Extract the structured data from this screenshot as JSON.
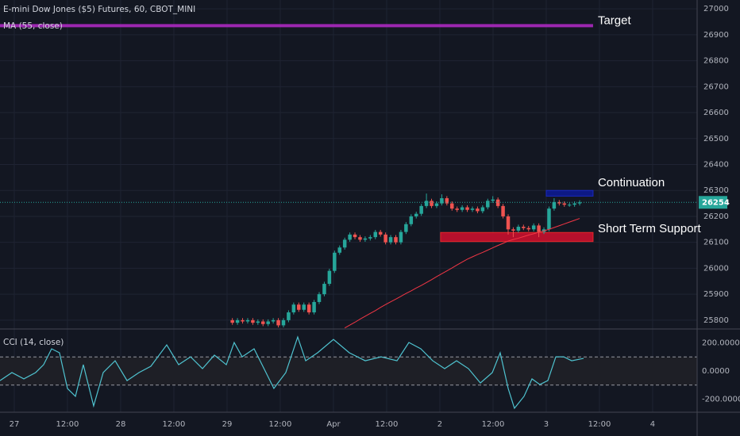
{
  "chart_data": [
    {
      "type": "candlestick",
      "title": "E-mini Dow Jones ($5) Futures, 60, CBOT_MINI",
      "up_color": "#26a69a",
      "down_color": "#ef5350",
      "x": [
        2.05,
        2.098,
        2.146,
        2.194,
        2.242,
        2.29,
        2.338,
        2.386,
        2.434,
        2.482,
        2.53,
        2.578,
        2.626,
        2.674,
        2.722,
        2.77,
        2.818,
        2.866,
        2.914,
        2.962,
        3.01,
        3.058,
        3.106,
        3.154,
        3.202,
        3.25,
        3.298,
        3.346,
        3.394,
        3.442,
        3.49,
        3.538,
        3.586,
        3.634,
        3.682,
        3.73,
        3.778,
        3.826,
        3.874,
        3.922,
        3.97,
        4.018,
        4.066,
        4.114,
        4.162,
        4.21,
        4.258,
        4.306,
        4.354,
        4.402,
        4.45,
        4.498,
        4.546,
        4.594,
        4.642,
        4.69,
        4.738,
        4.786,
        4.834,
        4.882,
        4.93,
        4.978,
        5.026,
        5.074,
        5.122,
        5.17,
        5.218,
        5.266,
        5.314
      ],
      "open": [
        25800,
        25790,
        25800,
        25795,
        25800,
        25790,
        25795,
        25785,
        25795,
        25800,
        25780,
        25800,
        25830,
        25860,
        25840,
        25860,
        25830,
        25870,
        25900,
        25940,
        25990,
        26060,
        26080,
        26110,
        26130,
        26120,
        26110,
        26115,
        26120,
        26140,
        26130,
        26100,
        26120,
        26100,
        26140,
        26170,
        26200,
        26210,
        26240,
        26260,
        26240,
        26250,
        26270,
        26250,
        26230,
        26225,
        26235,
        26225,
        26230,
        26220,
        26235,
        26260,
        26265,
        26240,
        26200,
        26150,
        26145,
        26160,
        26155,
        26150,
        26165,
        26140,
        26150,
        26230,
        26255,
        26250,
        26245,
        26245,
        26250
      ],
      "high": [
        25808,
        25808,
        25808,
        25808,
        25808,
        25803,
        25803,
        25803,
        25808,
        25808,
        25808,
        25838,
        25868,
        25868,
        25868,
        25868,
        25878,
        25908,
        25948,
        25998,
        26068,
        26088,
        26118,
        26138,
        26138,
        26128,
        26123,
        26128,
        26148,
        26148,
        26138,
        26128,
        26128,
        26148,
        26178,
        26208,
        26218,
        26248,
        26288,
        26268,
        26258,
        26285,
        26278,
        26258,
        26238,
        26243,
        26243,
        26238,
        26238,
        26243,
        26268,
        26278,
        26273,
        26248,
        26208,
        26158,
        26168,
        26168,
        26163,
        26173,
        26173,
        26158,
        26238,
        26270,
        26263,
        26258,
        26253,
        26258,
        26262
      ],
      "low": [
        25782,
        25782,
        25787,
        25787,
        25782,
        25782,
        25777,
        25777,
        25787,
        25772,
        25772,
        25792,
        25822,
        25832,
        25832,
        25822,
        25822,
        25862,
        25892,
        25932,
        25982,
        26052,
        26072,
        26102,
        26112,
        26102,
        26102,
        26107,
        26112,
        26122,
        26092,
        26092,
        26092,
        26092,
        26132,
        26162,
        26192,
        26202,
        26232,
        26232,
        26232,
        26242,
        26242,
        26222,
        26217,
        26217,
        26217,
        26217,
        26212,
        26212,
        26227,
        26252,
        26232,
        26192,
        26130,
        26120,
        26137,
        26147,
        26142,
        26142,
        26120,
        26132,
        26142,
        26222,
        26242,
        26237,
        26237,
        26237,
        26242
      ],
      "close": [
        25790,
        25800,
        25795,
        25800,
        25790,
        25795,
        25785,
        25795,
        25800,
        25780,
        25800,
        25830,
        25860,
        25840,
        25860,
        25830,
        25870,
        25900,
        25940,
        25990,
        26060,
        26080,
        26110,
        26130,
        26120,
        26110,
        26115,
        26120,
        26140,
        26130,
        26100,
        26120,
        26100,
        26140,
        26170,
        26200,
        26210,
        26240,
        26260,
        26240,
        26250,
        26270,
        26250,
        26230,
        26225,
        26235,
        26225,
        26230,
        26220,
        26235,
        26260,
        26265,
        26240,
        26200,
        26150,
        26145,
        26160,
        26155,
        26150,
        26165,
        26140,
        26150,
        26230,
        26255,
        26250,
        26245,
        26245,
        26250,
        26254
      ],
      "ma": {
        "name": "MA (55, close)",
        "color": "#f23645",
        "values": [
          null,
          null,
          null,
          null,
          null,
          null,
          null,
          null,
          null,
          null,
          null,
          null,
          null,
          null,
          null,
          null,
          null,
          null,
          null,
          null,
          null,
          null,
          25770,
          25781,
          25792,
          25804,
          25815,
          25826,
          25837,
          25849,
          25860,
          25871,
          25881,
          25892,
          25903,
          25913,
          25924,
          25934,
          25945,
          25956,
          25968,
          25979,
          25990,
          26001,
          26013,
          26024,
          26035,
          26044,
          26053,
          26061,
          26070,
          26079,
          26088,
          26096,
          26105,
          26111,
          26116,
          26122,
          26128,
          26133,
          26139,
          26144,
          26150,
          26157,
          26164,
          26171,
          26178,
          26185,
          26192
        ]
      },
      "annotations": [
        {
          "label": "Target",
          "level": 26935,
          "x": [
            -0.134,
            5.44
          ],
          "color": "#9c27b0"
        },
        {
          "label": "Continuation",
          "range": [
            26278,
            26300
          ],
          "x": [
            5.0,
            5.44
          ],
          "color": "#0d1a8f"
        },
        {
          "label": "Short Term Support",
          "range": [
            26103,
            26138
          ],
          "x": [
            4.007,
            5.44
          ],
          "color": "#c8102e"
        }
      ],
      "xlim": [
        -0.134,
        6.418
      ],
      "xticks": [
        {
          "value": 0,
          "label": "27"
        },
        {
          "value": 0.5,
          "label": "12:00"
        },
        {
          "value": 1,
          "label": "28"
        },
        {
          "value": 1.5,
          "label": "12:00"
        },
        {
          "value": 2,
          "label": "29"
        },
        {
          "value": 2.5,
          "label": "12:00"
        },
        {
          "value": 3,
          "label": "Apr"
        },
        {
          "value": 3.5,
          "label": "12:00"
        },
        {
          "value": 4,
          "label": "2"
        },
        {
          "value": 4.5,
          "label": "12:00"
        },
        {
          "value": 5,
          "label": "3"
        },
        {
          "value": 5.5,
          "label": "12:00"
        },
        {
          "value": 6,
          "label": "4"
        }
      ],
      "ylim": [
        25766,
        27034
      ],
      "yticks": [
        25800,
        25900,
        26000,
        26100,
        26200,
        26300,
        26400,
        26500,
        26600,
        26700,
        26800,
        26900,
        27000
      ],
      "grid": true
    },
    {
      "type": "line",
      "title": "CCI (14, close)",
      "color": "#4fc3d0",
      "x": [
        -0.134,
        -0.022,
        0.09,
        0.201,
        0.276,
        0.351,
        0.425,
        0.5,
        0.575,
        0.649,
        0.746,
        0.836,
        0.948,
        1.06,
        1.172,
        1.284,
        1.433,
        1.545,
        1.657,
        1.769,
        1.881,
        1.993,
        2.067,
        2.142,
        2.254,
        2.366,
        2.44,
        2.552,
        2.664,
        2.739,
        2.851,
        3.0,
        3.149,
        3.299,
        3.448,
        3.597,
        3.709,
        3.821,
        3.933,
        4.045,
        4.157,
        4.269,
        4.381,
        4.493,
        4.567,
        4.642,
        4.701,
        4.791,
        4.866,
        4.94,
        5.015,
        5.09,
        5.164,
        5.239,
        5.351
      ],
      "values": [
        -68,
        -11,
        -56,
        -11,
        45,
        158,
        130,
        -124,
        -180,
        45,
        -248,
        -11,
        73,
        -68,
        -11,
        34,
        186,
        45,
        101,
        17,
        113,
        45,
        203,
        101,
        158,
        -11,
        -124,
        -11,
        242,
        73,
        130,
        225,
        130,
        73,
        101,
        73,
        203,
        158,
        73,
        17,
        73,
        17,
        -85,
        -11,
        130,
        -124,
        -265,
        -180,
        -56,
        -96,
        -68,
        101,
        101,
        73,
        90
      ],
      "bands": [
        -100,
        100
      ],
      "ylim": [
        -293,
        299
      ],
      "yticks": [
        {
          "value": 200,
          "label": "200.0000"
        },
        {
          "value": 0,
          "label": "0.0000"
        },
        {
          "value": -200,
          "label": "-200.0000"
        }
      ]
    }
  ]
}
